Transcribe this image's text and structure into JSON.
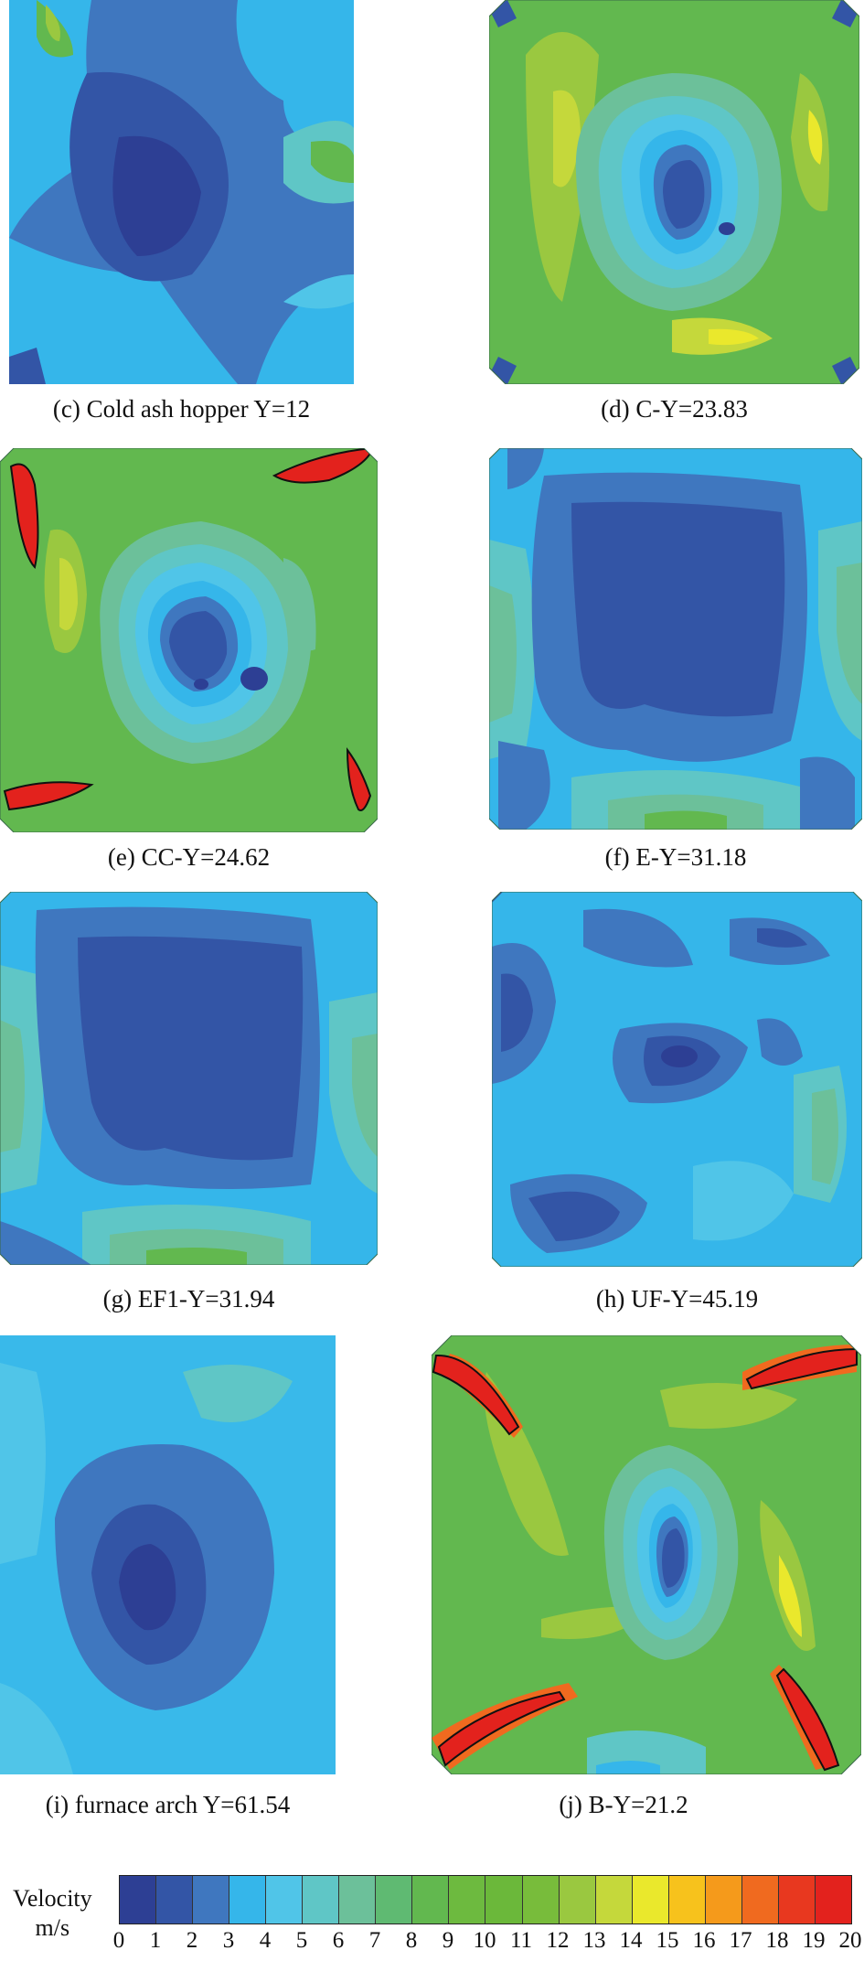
{
  "panels": [
    {
      "id": "c",
      "caption": "(c) Cold ash hopper Y=12"
    },
    {
      "id": "d",
      "caption": "(d) C-Y=23.83"
    },
    {
      "id": "e",
      "caption": "(e) CC-Y=24.62"
    },
    {
      "id": "f",
      "caption": "(f) E-Y=31.18"
    },
    {
      "id": "g",
      "caption": "(g) EF1-Y=31.94"
    },
    {
      "id": "h",
      "caption": "(h) UF-Y=45.19"
    },
    {
      "id": "i",
      "caption": "(i) furnace arch Y=61.54"
    },
    {
      "id": "j",
      "caption": "(j) B-Y=21.2"
    }
  ],
  "legend": {
    "title_line1": "Velocity",
    "title_line2": "m/s",
    "ticks": [
      "0",
      "1",
      "2",
      "3",
      "4",
      "5",
      "6",
      "7",
      "8",
      "9",
      "10",
      "11",
      "12",
      "13",
      "14",
      "15",
      "16",
      "17",
      "18",
      "19",
      "20"
    ],
    "colors": [
      "#2d3f94",
      "#3355a6",
      "#3f77bf",
      "#35b6ea",
      "#50c5e8",
      "#5fc6c6",
      "#6cc09a",
      "#5fba72",
      "#62b84f",
      "#6dba3f",
      "#6bb83a",
      "#78bc3b",
      "#9ac840",
      "#c5d83b",
      "#eae82c",
      "#f7c21c",
      "#f59a1b",
      "#f06a1f",
      "#e8381f",
      "#e3221d"
    ]
  }
}
